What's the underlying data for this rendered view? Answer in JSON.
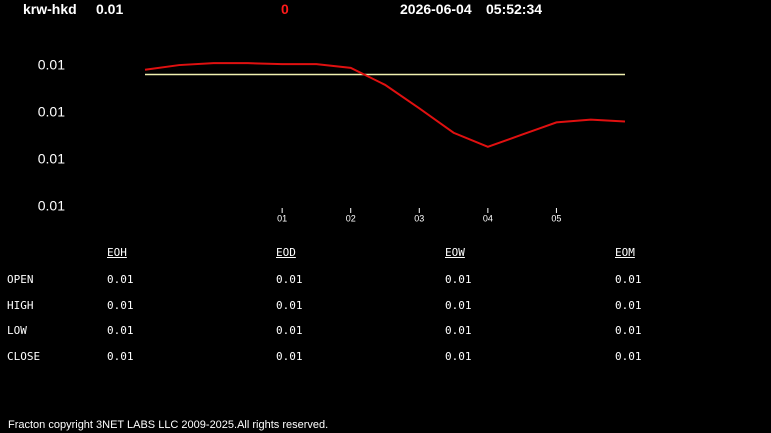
{
  "header": {
    "pair": "krw-hkd",
    "price": 0.01,
    "change": 0,
    "date": "2026-06-04",
    "time": "05:52:34"
  },
  "chart_data": {
    "type": "line",
    "x": [
      -1,
      -0.5,
      0,
      0.5,
      1,
      1.5,
      2,
      2.5,
      3,
      3.5,
      4,
      4.5,
      5,
      5.5,
      6
    ],
    "series": [
      {
        "color": "#e01010",
        "values": [
          0.005746,
          0.005751,
          0.005753,
          0.005753,
          0.005752,
          0.005752,
          0.005748,
          0.00573,
          0.005705,
          0.005679,
          0.005664,
          0.005677,
          0.00569,
          0.005693,
          0.005691
        ]
      },
      {
        "color": "#f0f0b0",
        "values": [
          0.005741,
          0.005741,
          0.005741,
          0.005741,
          0.005741,
          0.005741,
          0.005741,
          0.005741,
          0.005741,
          0.005741,
          0.005741,
          0.005741,
          0.005741,
          0.005741,
          0.005741
        ]
      }
    ],
    "xlim": [
      -1,
      6
    ],
    "xticks": [
      {
        "value": 1,
        "label": "01"
      },
      {
        "value": 2,
        "label": "02"
      },
      {
        "value": 3,
        "label": "03"
      },
      {
        "value": 4,
        "label": "04"
      },
      {
        "value": 5,
        "label": "05"
      }
    ],
    "ylim": [
      0.0056,
      0.00575
    ],
    "yticks": [
      {
        "value": 0.0056,
        "label": "0.01"
      },
      {
        "value": 0.00565,
        "label": "0.01"
      },
      {
        "value": 0.0057,
        "label": "0.01"
      },
      {
        "value": 0.00575,
        "label": "0.01"
      }
    ]
  },
  "table": {
    "columns": [
      "EOH",
      "EOD",
      "EOW",
      "EOM"
    ],
    "rows": [
      [
        "OPEN",
        0.01,
        0.01,
        0.01,
        0.01
      ],
      [
        "HIGH",
        0.01,
        0.01,
        0.01,
        0.01
      ],
      [
        "LOW",
        0.01,
        0.01,
        0.01,
        0.01
      ],
      [
        "CLOSE",
        0.01,
        0.01,
        0.01,
        0.01
      ]
    ]
  },
  "footer": "Fracton copyright 3NET LABS LLC 2009-2025.All rights reserved."
}
